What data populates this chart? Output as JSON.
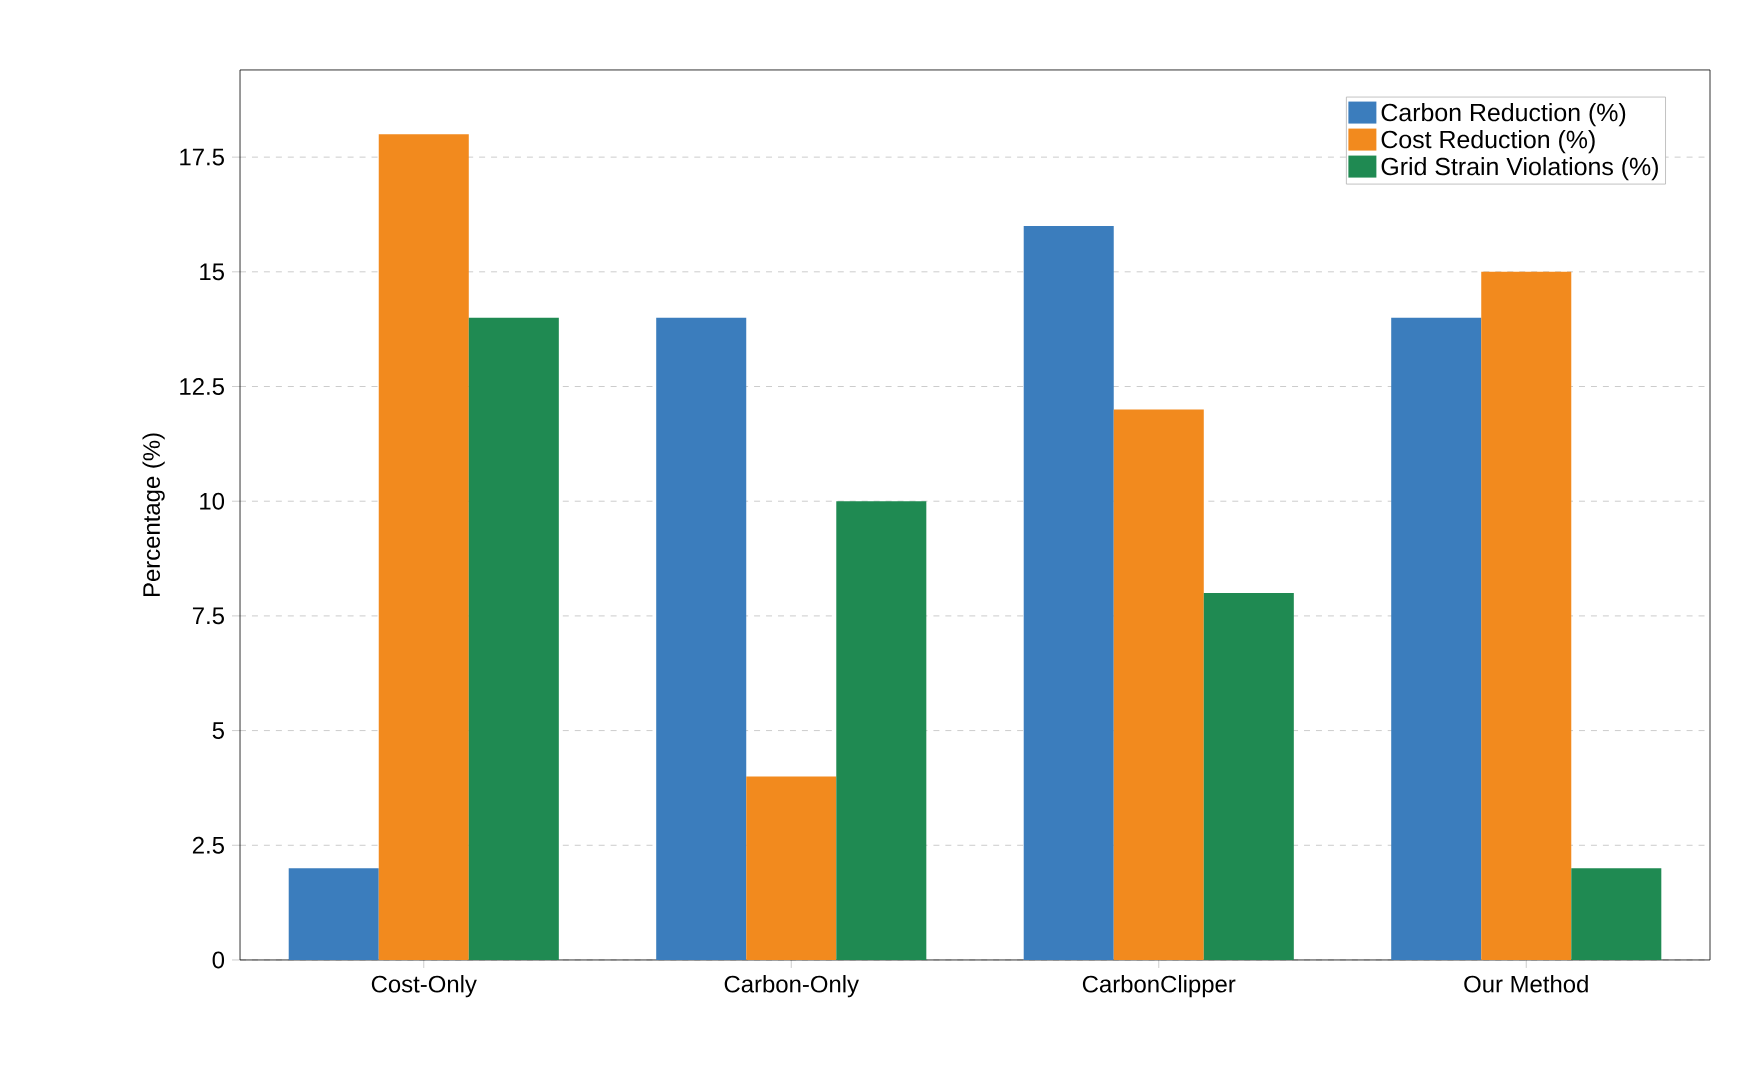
{
  "chart_data": {
    "type": "bar",
    "ylabel": "Percentage (%)",
    "categories": [
      "Cost-Only",
      "Carbon-Only",
      "CarbonClipper",
      "Our Method"
    ],
    "series": [
      {
        "name": "Carbon Reduction (%)",
        "color": "#3b7dbd",
        "values": [
          2,
          14,
          16,
          14
        ]
      },
      {
        "name": "Cost Reduction (%)",
        "color": "#f28a1e",
        "values": [
          18,
          4,
          12,
          15
        ]
      },
      {
        "name": "Grid Strain Violations (%)",
        "color": "#1f8a52",
        "values": [
          14,
          10,
          8,
          2
        ]
      }
    ],
    "ylim": [
      0,
      19.4
    ],
    "yticks": [
      0,
      2.5,
      5,
      7.5,
      10,
      12.5,
      15,
      17.5
    ],
    "grid": "y",
    "legend": "top right"
  }
}
